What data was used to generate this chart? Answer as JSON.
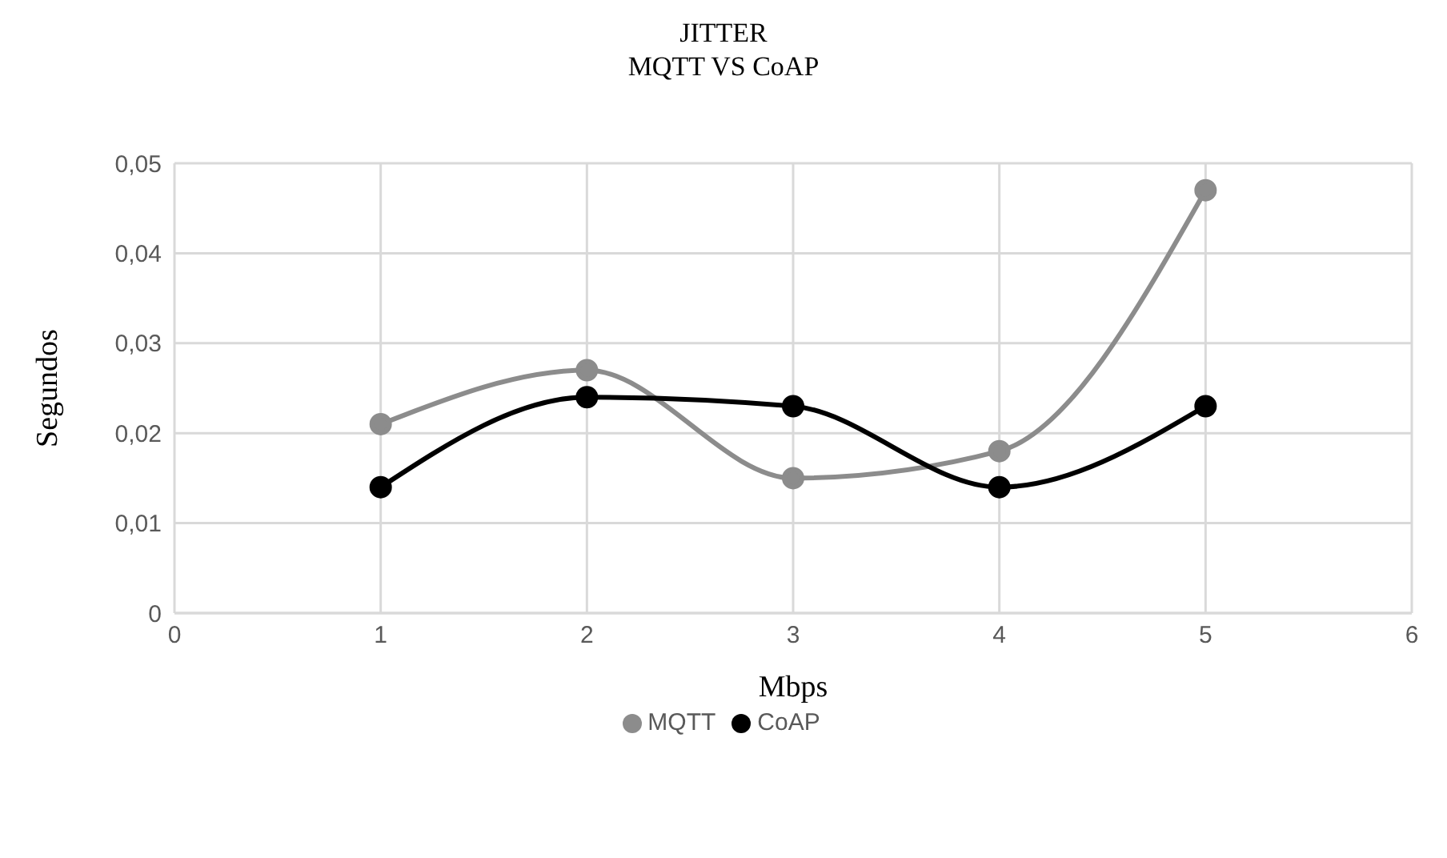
{
  "chart_data": {
    "type": "line",
    "title": "JITTER",
    "subtitle": "MQTT VS CoAP",
    "xlabel": "Mbps",
    "ylabel": "Segundos",
    "x": [
      1,
      2,
      3,
      4,
      5
    ],
    "series": [
      {
        "name": "MQTT",
        "color": "#8c8c8c",
        "values": [
          0.021,
          0.027,
          0.015,
          0.018,
          0.047
        ]
      },
      {
        "name": "CoAP",
        "color": "#000000",
        "values": [
          0.014,
          0.024,
          0.023,
          0.014,
          0.023
        ]
      }
    ],
    "xlim": [
      0,
      6
    ],
    "xticks": [
      0,
      1,
      2,
      3,
      4,
      5,
      6
    ],
    "ylim": [
      0,
      0.05
    ],
    "yticks": [
      0,
      {
        "value": 0.01,
        "label": "0,01"
      },
      {
        "value": 0.02,
        "label": "0,02"
      },
      {
        "value": 0.03,
        "label": "0,03"
      },
      {
        "value": 0.04,
        "label": "0,04"
      },
      {
        "value": 0.05,
        "label": "0,05"
      }
    ],
    "grid": true,
    "legend": "bottom",
    "marker": "circle",
    "line_style": "solid"
  }
}
